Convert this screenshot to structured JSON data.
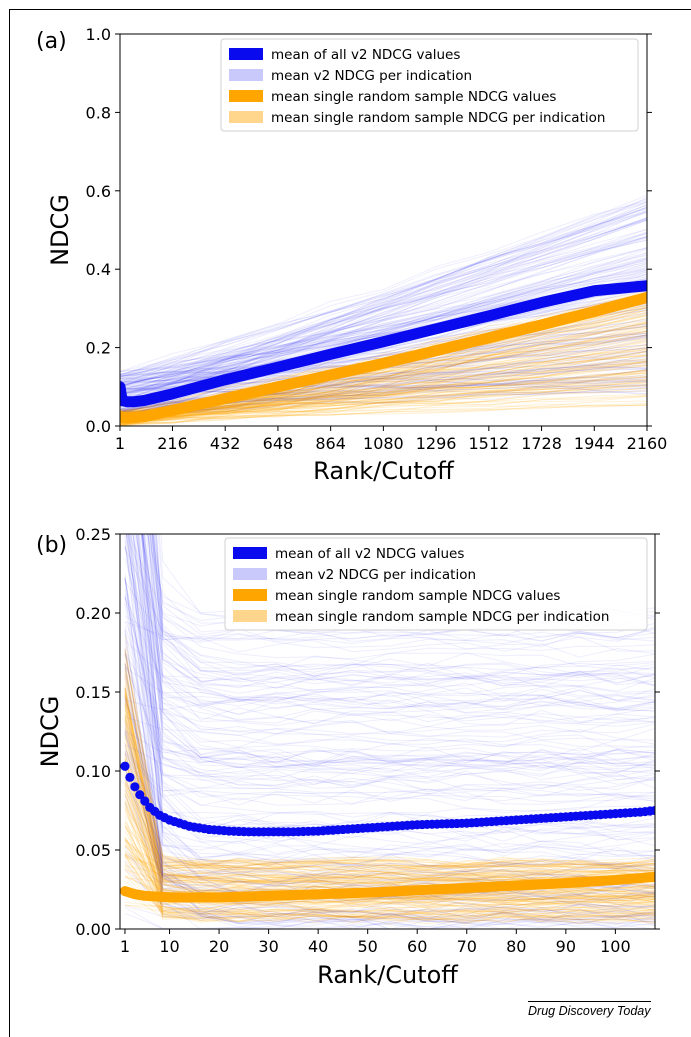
{
  "journal": "Drug Discovery Today",
  "chart_data": [
    {
      "panel": "(a)",
      "type": "line",
      "xlabel": "Rank/Cutoff",
      "ylabel": "NDCG",
      "xlim": [
        1,
        2160
      ],
      "ylim": [
        0,
        1.0
      ],
      "xticks": [
        1,
        216,
        432,
        648,
        864,
        1080,
        1296,
        1512,
        1728,
        1944,
        2160
      ],
      "yticks": [
        0.0,
        0.2,
        0.4,
        0.6,
        0.8,
        1.0
      ],
      "legend_position": "top-right",
      "colors": {
        "v2": "#0a0aee",
        "random": "#ffa500"
      },
      "series": [
        {
          "name": "mean of all v2 NDCG values",
          "color": "#0a0aee",
          "x": [
            1,
            10,
            30,
            60,
            100,
            216,
            432,
            648,
            864,
            1080,
            1296,
            1512,
            1728,
            1944,
            2160
          ],
          "y": [
            0.1,
            0.065,
            0.062,
            0.062,
            0.065,
            0.082,
            0.118,
            0.15,
            0.183,
            0.215,
            0.248,
            0.281,
            0.315,
            0.345,
            0.358
          ]
        },
        {
          "name": "mean v2 NDCG per indication",
          "color": "#c8c8f5"
        },
        {
          "name": "mean single random sample NDCG values",
          "color": "#ffa500",
          "x": [
            1,
            10,
            30,
            60,
            100,
            216,
            432,
            648,
            864,
            1080,
            1296,
            1512,
            1728,
            1944,
            2160
          ],
          "y": [
            0.025,
            0.022,
            0.021,
            0.022,
            0.024,
            0.04,
            0.07,
            0.1,
            0.13,
            0.16,
            0.192,
            0.225,
            0.258,
            0.292,
            0.328
          ]
        },
        {
          "name": "mean single random sample NDCG per indication",
          "color": "#ffd98a"
        }
      ]
    },
    {
      "panel": "(b)",
      "type": "line",
      "xlabel": "Rank/Cutoff",
      "ylabel": "NDCG",
      "xlim": [
        0,
        108
      ],
      "ylim": [
        0,
        0.25
      ],
      "xticks": [
        1,
        10,
        20,
        30,
        40,
        50,
        60,
        70,
        80,
        90,
        100
      ],
      "yticks": [
        0.0,
        0.05,
        0.1,
        0.15,
        0.2,
        0.25
      ],
      "legend_position": "top-right",
      "colors": {
        "v2": "#0a0aee",
        "random": "#ffa500"
      },
      "series": [
        {
          "name": "mean of all v2 NDCG values",
          "color": "#0a0aee",
          "x": [
            1,
            2,
            3,
            4,
            5,
            6,
            8,
            10,
            14,
            18,
            22,
            26,
            30,
            35,
            40,
            45,
            50,
            55,
            60,
            65,
            70,
            75,
            80,
            85,
            90,
            95,
            100,
            105,
            108
          ],
          "y": [
            0.103,
            0.096,
            0.09,
            0.085,
            0.081,
            0.077,
            0.072,
            0.069,
            0.065,
            0.063,
            0.062,
            0.0615,
            0.0615,
            0.0615,
            0.062,
            0.063,
            0.064,
            0.065,
            0.066,
            0.0665,
            0.067,
            0.068,
            0.069,
            0.07,
            0.071,
            0.072,
            0.073,
            0.074,
            0.075
          ]
        },
        {
          "name": "mean v2 NDCG per indication",
          "color": "#c8c8f5"
        },
        {
          "name": "mean single random sample NDCG values",
          "color": "#ffa500",
          "x": [
            1,
            3,
            5,
            10,
            20,
            30,
            40,
            50,
            60,
            70,
            80,
            90,
            100,
            108
          ],
          "y": [
            0.024,
            0.022,
            0.021,
            0.02,
            0.02,
            0.021,
            0.022,
            0.023,
            0.0245,
            0.026,
            0.0275,
            0.029,
            0.031,
            0.033
          ]
        },
        {
          "name": "mean single random sample NDCG per indication",
          "color": "#ffd98a"
        }
      ]
    }
  ]
}
